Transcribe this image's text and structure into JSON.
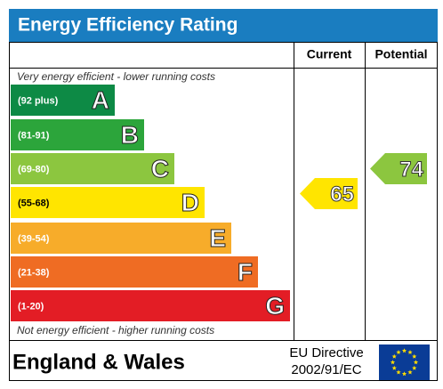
{
  "header": {
    "title": "Energy Efficiency Rating"
  },
  "columns": {
    "current": "Current",
    "potential": "Potential"
  },
  "top_note": "Very energy efficient - lower running costs",
  "bottom_note": "Not energy efficient - higher running costs",
  "bands": [
    {
      "range": "(92 plus)",
      "letter": "A",
      "color": "#0d8a45"
    },
    {
      "range": "(81-91)",
      "letter": "B",
      "color": "#2ca53b"
    },
    {
      "range": "(69-80)",
      "letter": "C",
      "color": "#8cc63f"
    },
    {
      "range": "(55-68)",
      "letter": "D",
      "color": "#ffe500"
    },
    {
      "range": "(39-54)",
      "letter": "E",
      "color": "#f7ac2a"
    },
    {
      "range": "(21-38)",
      "letter": "F",
      "color": "#ef6c23"
    },
    {
      "range": "(1-20)",
      "letter": "G",
      "color": "#e31d25"
    }
  ],
  "current": {
    "value": 65,
    "color": "#ffe500"
  },
  "potential": {
    "value": 74,
    "color": "#8cc63f"
  },
  "footer": {
    "region": "England & Wales",
    "directive": [
      "EU Directive",
      "2002/91/EC"
    ]
  }
}
